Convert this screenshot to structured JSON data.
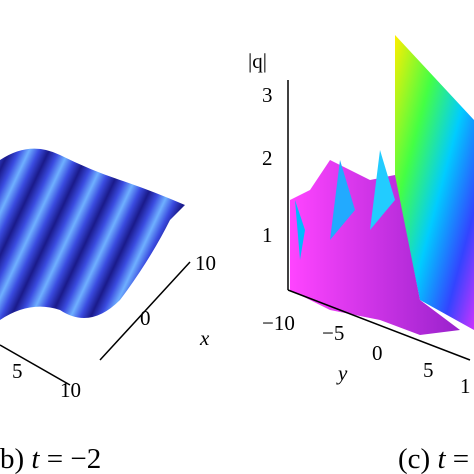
{
  "panels": [
    {
      "tick_labels": [
        "10",
        "0",
        "5",
        "10"
      ],
      "axis_labels": [
        "x"
      ],
      "caption": {
        "label": "b)",
        "var": "t",
        "rest": "= −2"
      }
    },
    {
      "tick_labels": [
        "3",
        "2",
        "1",
        "−10",
        "−5",
        "0",
        "5",
        "1"
      ],
      "axis_labels": [
        "|q|",
        "y"
      ],
      "caption": {
        "label": "(c)",
        "var": "t",
        "rest": "="
      }
    }
  ]
}
